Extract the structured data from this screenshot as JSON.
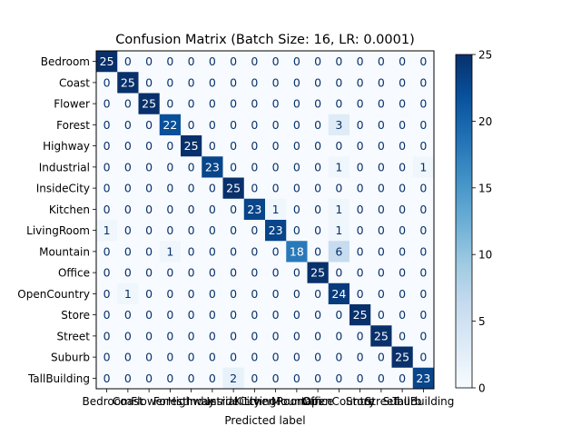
{
  "chart_data": {
    "type": "heatmap",
    "title": "Confusion Matrix (Batch Size: 16, LR: 0.0001)",
    "xlabel": "Predicted label",
    "ylabel": "",
    "labels": [
      "Bedroom",
      "Coast",
      "Flower",
      "Forest",
      "Highway",
      "Industrial",
      "InsideCity",
      "Kitchen",
      "LivingRoom",
      "Mountain",
      "Office",
      "OpenCountry",
      "Store",
      "Street",
      "Suburb",
      "TallBuilding"
    ],
    "matrix": [
      [
        25,
        0,
        0,
        0,
        0,
        0,
        0,
        0,
        0,
        0,
        0,
        0,
        0,
        0,
        0,
        0
      ],
      [
        0,
        25,
        0,
        0,
        0,
        0,
        0,
        0,
        0,
        0,
        0,
        0,
        0,
        0,
        0,
        0
      ],
      [
        0,
        0,
        25,
        0,
        0,
        0,
        0,
        0,
        0,
        0,
        0,
        0,
        0,
        0,
        0,
        0
      ],
      [
        0,
        0,
        0,
        22,
        0,
        0,
        0,
        0,
        0,
        0,
        0,
        3,
        0,
        0,
        0,
        0
      ],
      [
        0,
        0,
        0,
        0,
        25,
        0,
        0,
        0,
        0,
        0,
        0,
        0,
        0,
        0,
        0,
        0
      ],
      [
        0,
        0,
        0,
        0,
        0,
        23,
        0,
        0,
        0,
        0,
        0,
        1,
        0,
        0,
        0,
        1
      ],
      [
        0,
        0,
        0,
        0,
        0,
        0,
        25,
        0,
        0,
        0,
        0,
        0,
        0,
        0,
        0,
        0
      ],
      [
        0,
        0,
        0,
        0,
        0,
        0,
        0,
        23,
        1,
        0,
        0,
        1,
        0,
        0,
        0,
        0
      ],
      [
        1,
        0,
        0,
        0,
        0,
        0,
        0,
        0,
        23,
        0,
        0,
        1,
        0,
        0,
        0,
        0
      ],
      [
        0,
        0,
        0,
        1,
        0,
        0,
        0,
        0,
        0,
        18,
        0,
        6,
        0,
        0,
        0,
        0
      ],
      [
        0,
        0,
        0,
        0,
        0,
        0,
        0,
        0,
        0,
        0,
        25,
        0,
        0,
        0,
        0,
        0
      ],
      [
        0,
        1,
        0,
        0,
        0,
        0,
        0,
        0,
        0,
        0,
        0,
        24,
        0,
        0,
        0,
        0
      ],
      [
        0,
        0,
        0,
        0,
        0,
        0,
        0,
        0,
        0,
        0,
        0,
        0,
        25,
        0,
        0,
        0
      ],
      [
        0,
        0,
        0,
        0,
        0,
        0,
        0,
        0,
        0,
        0,
        0,
        0,
        0,
        25,
        0,
        0
      ],
      [
        0,
        0,
        0,
        0,
        0,
        0,
        0,
        0,
        0,
        0,
        0,
        0,
        0,
        0,
        25,
        0
      ],
      [
        0,
        0,
        0,
        0,
        0,
        0,
        2,
        0,
        0,
        0,
        0,
        0,
        0,
        0,
        0,
        23
      ]
    ],
    "colormap": "Blues",
    "colors": {
      "low": "#f7fbff",
      "high": "#08306b"
    },
    "colorbar": {
      "min": 0,
      "max": 25,
      "ticks": [
        0,
        5,
        10,
        15,
        20,
        25
      ]
    },
    "grid": false
  }
}
